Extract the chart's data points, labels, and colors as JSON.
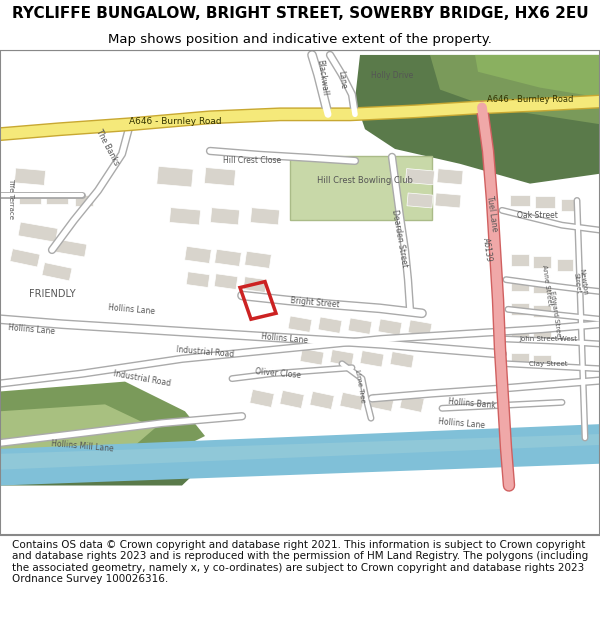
{
  "title_line1": "RYCLIFFE BUNGALOW, BRIGHT STREET, SOWERBY BRIDGE, HX6 2EU",
  "title_line2": "Map shows position and indicative extent of the property.",
  "footer_text": "Contains OS data © Crown copyright and database right 2021. This information is subject to Crown copyright and database rights 2023 and is reproduced with the permission of HM Land Registry. The polygons (including the associated geometry, namely x, y co-ordinates) are subject to Crown copyright and database rights 2023 Ordnance Survey 100026316.",
  "map_bg": "#f0ede8",
  "road_yellow": "#f5e97a",
  "road_yellow_outline": "#c8a832",
  "road_white": "#ffffff",
  "road_grey": "#aaaaaa",
  "road_pink": "#f0a8a8",
  "road_pink_dark": "#d06060",
  "green_dark": "#5a7a4a",
  "green_med": "#7a9a5a",
  "green_light": "#a8c080",
  "green_pale": "#c8d8a8",
  "blue_river": "#80c0d8",
  "blue_river2": "#90c8d8",
  "grey_building": "#d8d4cc",
  "plot_red": "#cc2222",
  "border_color": "#888888",
  "title_fontsize": 11,
  "subtitle_fontsize": 9.5,
  "footer_fontsize": 7.5,
  "figsize": [
    6.0,
    6.25
  ],
  "dpi": 100
}
